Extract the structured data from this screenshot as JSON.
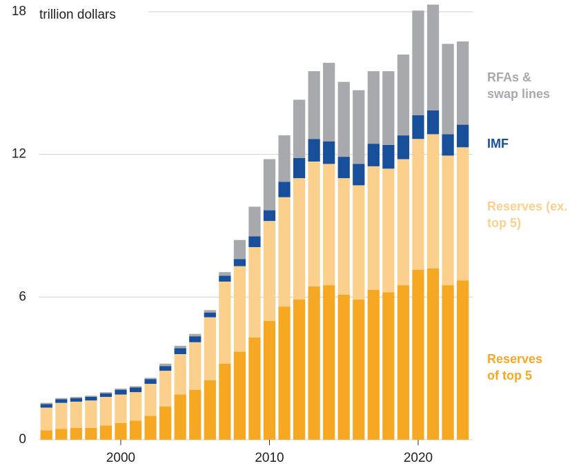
{
  "chart_data": {
    "type": "bar",
    "stacked": true,
    "y_label": "trillion dollars",
    "x": [
      1995,
      1996,
      1997,
      1998,
      1999,
      2000,
      2001,
      2002,
      2003,
      2004,
      2005,
      2006,
      2007,
      2008,
      2009,
      2010,
      2011,
      2012,
      2013,
      2014,
      2015,
      2016,
      2017,
      2018,
      2019,
      2020,
      2021,
      2022,
      2023
    ],
    "xlim": [
      1994.5,
      2023.5
    ],
    "xticks": [
      2000,
      2010,
      2020
    ],
    "ylim": [
      0,
      18
    ],
    "yticks": [
      0,
      6,
      12,
      18
    ],
    "grid": true,
    "series": [
      {
        "name": "Reserves of top 5",
        "color": "#f7a823",
        "values": [
          0.4,
          0.45,
          0.5,
          0.5,
          0.6,
          0.7,
          0.8,
          1.0,
          1.4,
          1.9,
          2.1,
          2.5,
          3.2,
          3.7,
          4.3,
          5.0,
          5.6,
          5.9,
          6.45,
          6.5,
          6.1,
          5.9,
          6.3,
          6.2,
          6.5,
          7.15,
          7.2,
          6.5,
          6.7
        ]
      },
      {
        "name": "Reserves (ex. top 5)",
        "color": "#fbd08c",
        "values": [
          0.95,
          1.1,
          1.1,
          1.15,
          1.2,
          1.2,
          1.2,
          1.35,
          1.5,
          1.7,
          2.0,
          2.65,
          3.45,
          3.6,
          3.8,
          4.2,
          4.6,
          5.1,
          5.25,
          5.1,
          4.9,
          4.8,
          5.2,
          5.2,
          5.3,
          5.5,
          5.65,
          5.45,
          5.6
        ]
      },
      {
        "name": "IMF",
        "color": "#174f9b",
        "values": [
          0.15,
          0.15,
          0.15,
          0.15,
          0.15,
          0.2,
          0.2,
          0.2,
          0.2,
          0.25,
          0.25,
          0.2,
          0.25,
          0.3,
          0.45,
          0.45,
          0.65,
          0.85,
          0.95,
          0.95,
          0.9,
          0.9,
          0.95,
          1.0,
          1.0,
          1.0,
          1.0,
          0.9,
          0.95
        ]
      },
      {
        "name": "RFAs & swap lines",
        "color": "#a7a9ac",
        "values": [
          0.05,
          0.05,
          0.05,
          0.05,
          0.05,
          0.05,
          0.05,
          0.05,
          0.1,
          0.1,
          0.1,
          0.1,
          0.15,
          0.8,
          1.25,
          2.15,
          1.95,
          2.45,
          2.85,
          3.3,
          3.15,
          3.1,
          3.05,
          3.1,
          3.4,
          4.4,
          4.45,
          3.8,
          3.5
        ]
      }
    ]
  }
}
